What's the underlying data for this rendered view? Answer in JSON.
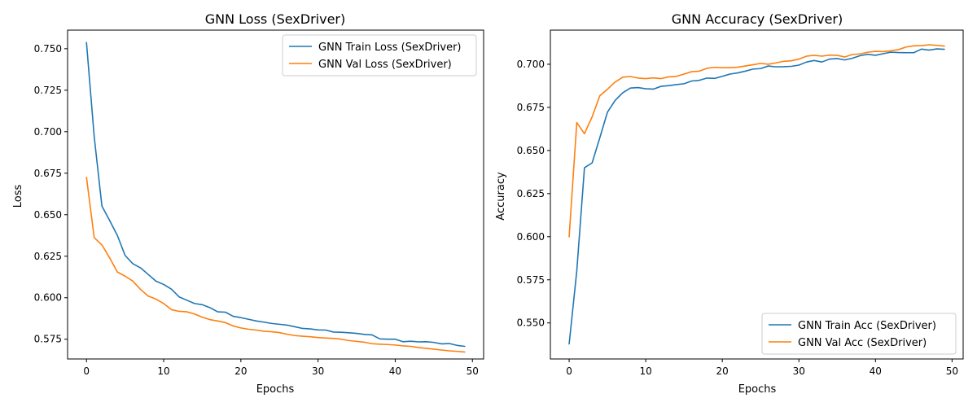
{
  "chart_data": [
    {
      "type": "line",
      "title": "GNN Loss (SexDriver)",
      "xlabel": "Epochs",
      "ylabel": "Loss",
      "xlim": [
        -2.45,
        51.45
      ],
      "ylim": [
        0.5631,
        0.7612
      ],
      "xticks": [
        0,
        10,
        20,
        30,
        40,
        50
      ],
      "yticks": [
        0.575,
        0.6,
        0.625,
        0.65,
        0.675,
        0.7,
        0.725,
        0.75
      ],
      "ytick_labels": [
        "0.575",
        "0.600",
        "0.625",
        "0.650",
        "0.675",
        "0.700",
        "0.725",
        "0.750"
      ],
      "grid": false,
      "legend": "top-right",
      "series": [
        {
          "name": "GNN Train Loss (SexDriver)",
          "color": "#1f77b4",
          "values": [
            0.7537,
            0.697,
            0.6552,
            0.6465,
            0.6375,
            0.6255,
            0.6205,
            0.618,
            0.614,
            0.61,
            0.608,
            0.6052,
            0.6005,
            0.5985,
            0.5965,
            0.5958,
            0.594,
            0.5915,
            0.5913,
            0.5888,
            0.588,
            0.587,
            0.586,
            0.5853,
            0.5845,
            0.584,
            0.5835,
            0.5825,
            0.5815,
            0.5812,
            0.5806,
            0.5805,
            0.5793,
            0.5792,
            0.5789,
            0.5785,
            0.5779,
            0.5776,
            0.5752,
            0.575,
            0.575,
            0.5735,
            0.5738,
            0.5734,
            0.5735,
            0.5731,
            0.5722,
            0.5724,
            0.5713,
            0.5707
          ]
        },
        {
          "name": "GNN Val Loss (SexDriver)",
          "color": "#ff7f0e",
          "values": [
            0.6725,
            0.6362,
            0.6318,
            0.624,
            0.6155,
            0.613,
            0.61,
            0.605,
            0.601,
            0.5992,
            0.5965,
            0.5928,
            0.5918,
            0.5915,
            0.5902,
            0.5883,
            0.5868,
            0.586,
            0.585,
            0.583,
            0.5818,
            0.581,
            0.5805,
            0.5798,
            0.5795,
            0.579,
            0.578,
            0.5772,
            0.5768,
            0.5765,
            0.576,
            0.5757,
            0.5755,
            0.575,
            0.5742,
            0.5737,
            0.5732,
            0.5723,
            0.572,
            0.5718,
            0.5715,
            0.571,
            0.5707,
            0.57,
            0.5695,
            0.569,
            0.5685,
            0.568,
            0.5677,
            0.5673
          ]
        }
      ]
    },
    {
      "type": "line",
      "title": "GNN Accuracy (SexDriver)",
      "xlabel": "Epochs",
      "ylabel": "Accuracy",
      "xlim": [
        -2.45,
        51.45
      ],
      "ylim": [
        0.5291,
        0.7198
      ],
      "xticks": [
        0,
        10,
        20,
        30,
        40,
        50
      ],
      "yticks": [
        0.55,
        0.575,
        0.6,
        0.625,
        0.65,
        0.675,
        0.7
      ],
      "ytick_labels": [
        "0.550",
        "0.575",
        "0.600",
        "0.625",
        "0.650",
        "0.675",
        "0.700"
      ],
      "grid": false,
      "legend": "bottom-right",
      "series": [
        {
          "name": "GNN Train Acc (SexDriver)",
          "color": "#1f77b4",
          "values": [
            0.5378,
            0.5802,
            0.64,
            0.6428,
            0.6573,
            0.6722,
            0.679,
            0.6835,
            0.6862,
            0.6865,
            0.6858,
            0.6856,
            0.6872,
            0.6876,
            0.6882,
            0.6887,
            0.6903,
            0.6907,
            0.692,
            0.6918,
            0.693,
            0.6943,
            0.695,
            0.696,
            0.6972,
            0.6975,
            0.699,
            0.6985,
            0.6986,
            0.6988,
            0.6995,
            0.7013,
            0.7022,
            0.7013,
            0.703,
            0.7033,
            0.7025,
            0.7035,
            0.705,
            0.7058,
            0.7052,
            0.7061,
            0.707,
            0.7068,
            0.7067,
            0.7067,
            0.7088,
            0.7082,
            0.7089,
            0.7087
          ]
        },
        {
          "name": "GNN Val Acc (SexDriver)",
          "color": "#ff7f0e",
          "values": [
            0.6,
            0.6662,
            0.6597,
            0.6695,
            0.6817,
            0.6855,
            0.6897,
            0.6925,
            0.6929,
            0.692,
            0.6917,
            0.6921,
            0.6917,
            0.6927,
            0.693,
            0.6943,
            0.6957,
            0.696,
            0.6977,
            0.6982,
            0.698,
            0.698,
            0.6983,
            0.699,
            0.6997,
            0.7005,
            0.7,
            0.7008,
            0.7017,
            0.702,
            0.703,
            0.7047,
            0.7052,
            0.7047,
            0.7053,
            0.7052,
            0.7042,
            0.7057,
            0.706,
            0.707,
            0.7075,
            0.7073,
            0.7078,
            0.7085,
            0.71,
            0.7107,
            0.7108,
            0.7113,
            0.711,
            0.7105
          ]
        }
      ]
    }
  ]
}
